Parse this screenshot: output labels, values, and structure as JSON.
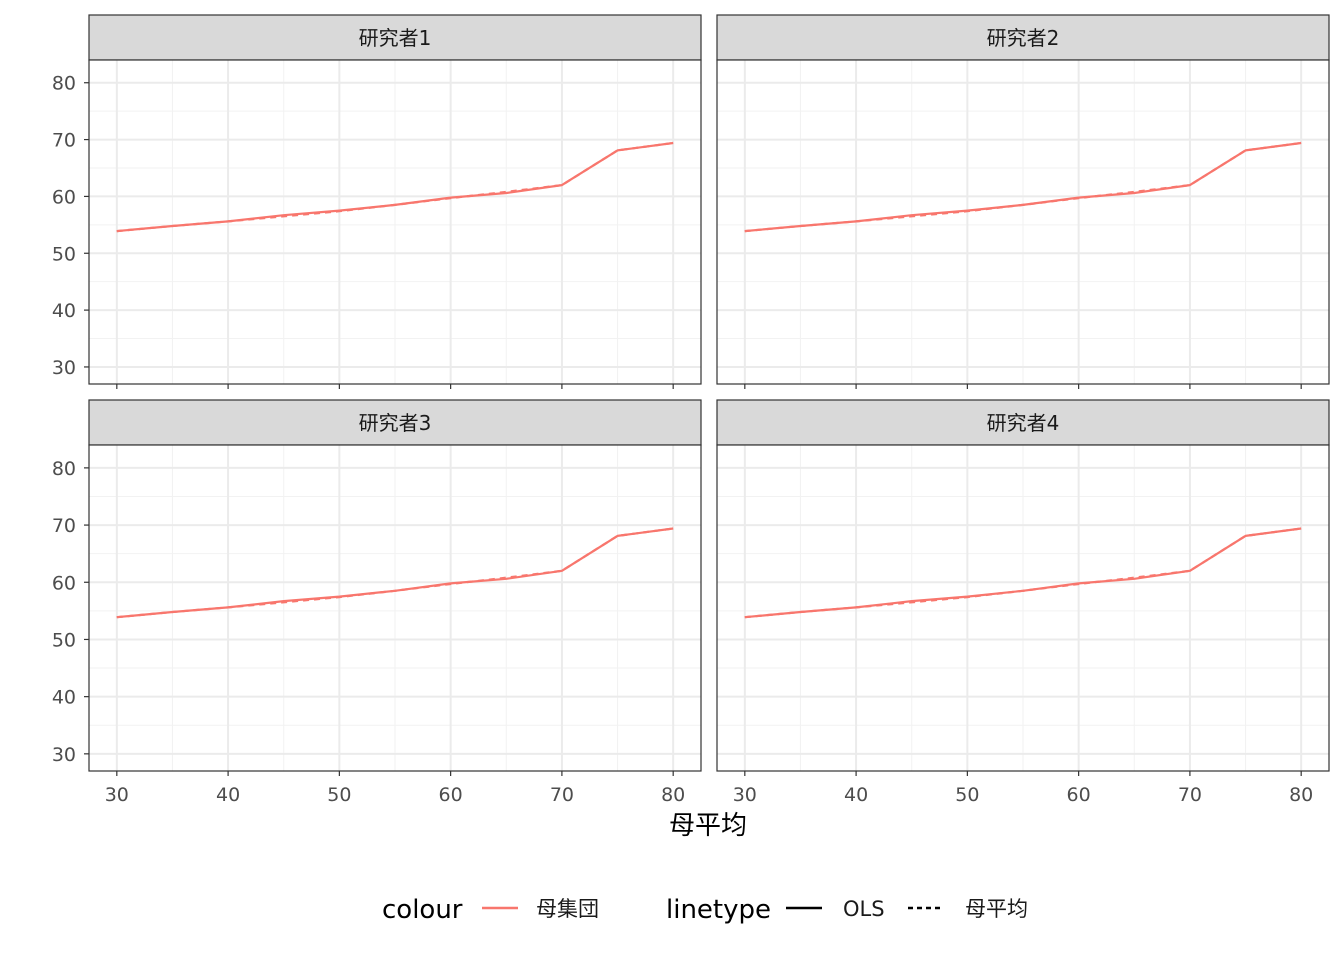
{
  "chart_data": {
    "type": "line",
    "facet_titles": [
      "研究者1",
      "研究者2",
      "研究者3",
      "研究者4"
    ],
    "xlabel": "母平均",
    "ylabel": "",
    "xlim": [
      27.5,
      82.5
    ],
    "ylim": [
      27,
      84
    ],
    "x_ticks": [
      30,
      40,
      50,
      60,
      70,
      80
    ],
    "y_ticks": [
      30,
      40,
      50,
      60,
      70,
      80
    ],
    "x": [
      30,
      35,
      40,
      45,
      50,
      55,
      60,
      65,
      70,
      75,
      80
    ],
    "series": [
      {
        "name": "OLS",
        "colour": "母集団",
        "linetype": "solid",
        "values": [
          53.9,
          54.8,
          55.6,
          56.7,
          57.5,
          58.5,
          59.8,
          60.6,
          62.0,
          68.1,
          69.4
        ]
      },
      {
        "name": "母平均",
        "colour": "母集団",
        "linetype": "dashed",
        "values": [
          53.9,
          54.8,
          55.6,
          56.5,
          57.4,
          58.5,
          59.7,
          60.8,
          62.0,
          68.1,
          69.4
        ]
      }
    ],
    "legend": {
      "position": "bottom",
      "colour_title": "colour",
      "colour_items": [
        {
          "label": "母集団",
          "color": "#F8766D"
        }
      ],
      "linetype_title": "linetype",
      "linetype_items": [
        {
          "label": "OLS",
          "style": "solid"
        },
        {
          "label": "母平均",
          "style": "dashed"
        }
      ]
    },
    "grid": true
  }
}
